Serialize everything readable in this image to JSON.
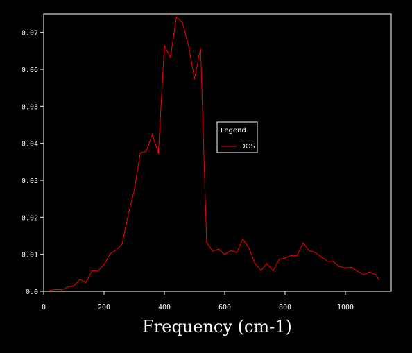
{
  "chart_data": {
    "type": "line",
    "title": "",
    "xlabel": "Frequency (cm-1)",
    "ylabel": "",
    "xlim": [
      0,
      1130
    ],
    "ylim": [
      0,
      0.075
    ],
    "x_ticks": [
      0,
      200,
      400,
      600,
      800,
      1000
    ],
    "y_ticks": [
      0.0,
      0.01,
      0.02,
      0.03,
      0.04,
      0.05,
      0.06,
      0.07
    ],
    "x_tick_labels": [
      "0",
      "200",
      "400",
      "600",
      "800",
      "1000"
    ],
    "y_tick_labels": [
      "0.0",
      "0.01",
      "0.02",
      "0.03",
      "0.04",
      "0.05",
      "0.06",
      "0.07"
    ],
    "grid": false,
    "legend": {
      "title": "Legend",
      "position": "center-right"
    },
    "colors": {
      "background": "#000000",
      "axes": "#ffffff",
      "series": "#ff0000"
    },
    "series": [
      {
        "name": "DOS",
        "x": [
          20,
          40,
          60,
          80,
          100,
          120,
          140,
          160,
          180,
          200,
          220,
          240,
          260,
          280,
          300,
          320,
          340,
          360,
          380,
          400,
          420,
          440,
          460,
          480,
          500,
          520,
          540,
          560,
          580,
          600,
          620,
          640,
          660,
          680,
          700,
          720,
          740,
          760,
          780,
          800,
          820,
          840,
          860,
          880,
          900,
          920,
          940,
          960,
          980,
          1000,
          1020,
          1040,
          1060,
          1080,
          1100,
          1110
        ],
        "values": [
          0.0002,
          0.0005,
          0.0004,
          0.0012,
          0.0015,
          0.0032,
          0.0024,
          0.0055,
          0.0055,
          0.0072,
          0.0101,
          0.0112,
          0.0128,
          0.0207,
          0.0272,
          0.0374,
          0.0378,
          0.0425,
          0.0372,
          0.0664,
          0.0632,
          0.0742,
          0.0726,
          0.0664,
          0.0574,
          0.0658,
          0.0132,
          0.0109,
          0.0114,
          0.01,
          0.011,
          0.0105,
          0.0142,
          0.0117,
          0.0076,
          0.0056,
          0.0075,
          0.0055,
          0.0086,
          0.009,
          0.0097,
          0.0097,
          0.0131,
          0.011,
          0.0105,
          0.0093,
          0.0082,
          0.008,
          0.0067,
          0.0063,
          0.0065,
          0.0054,
          0.0045,
          0.0052,
          0.0046,
          0.0032
        ]
      }
    ]
  }
}
